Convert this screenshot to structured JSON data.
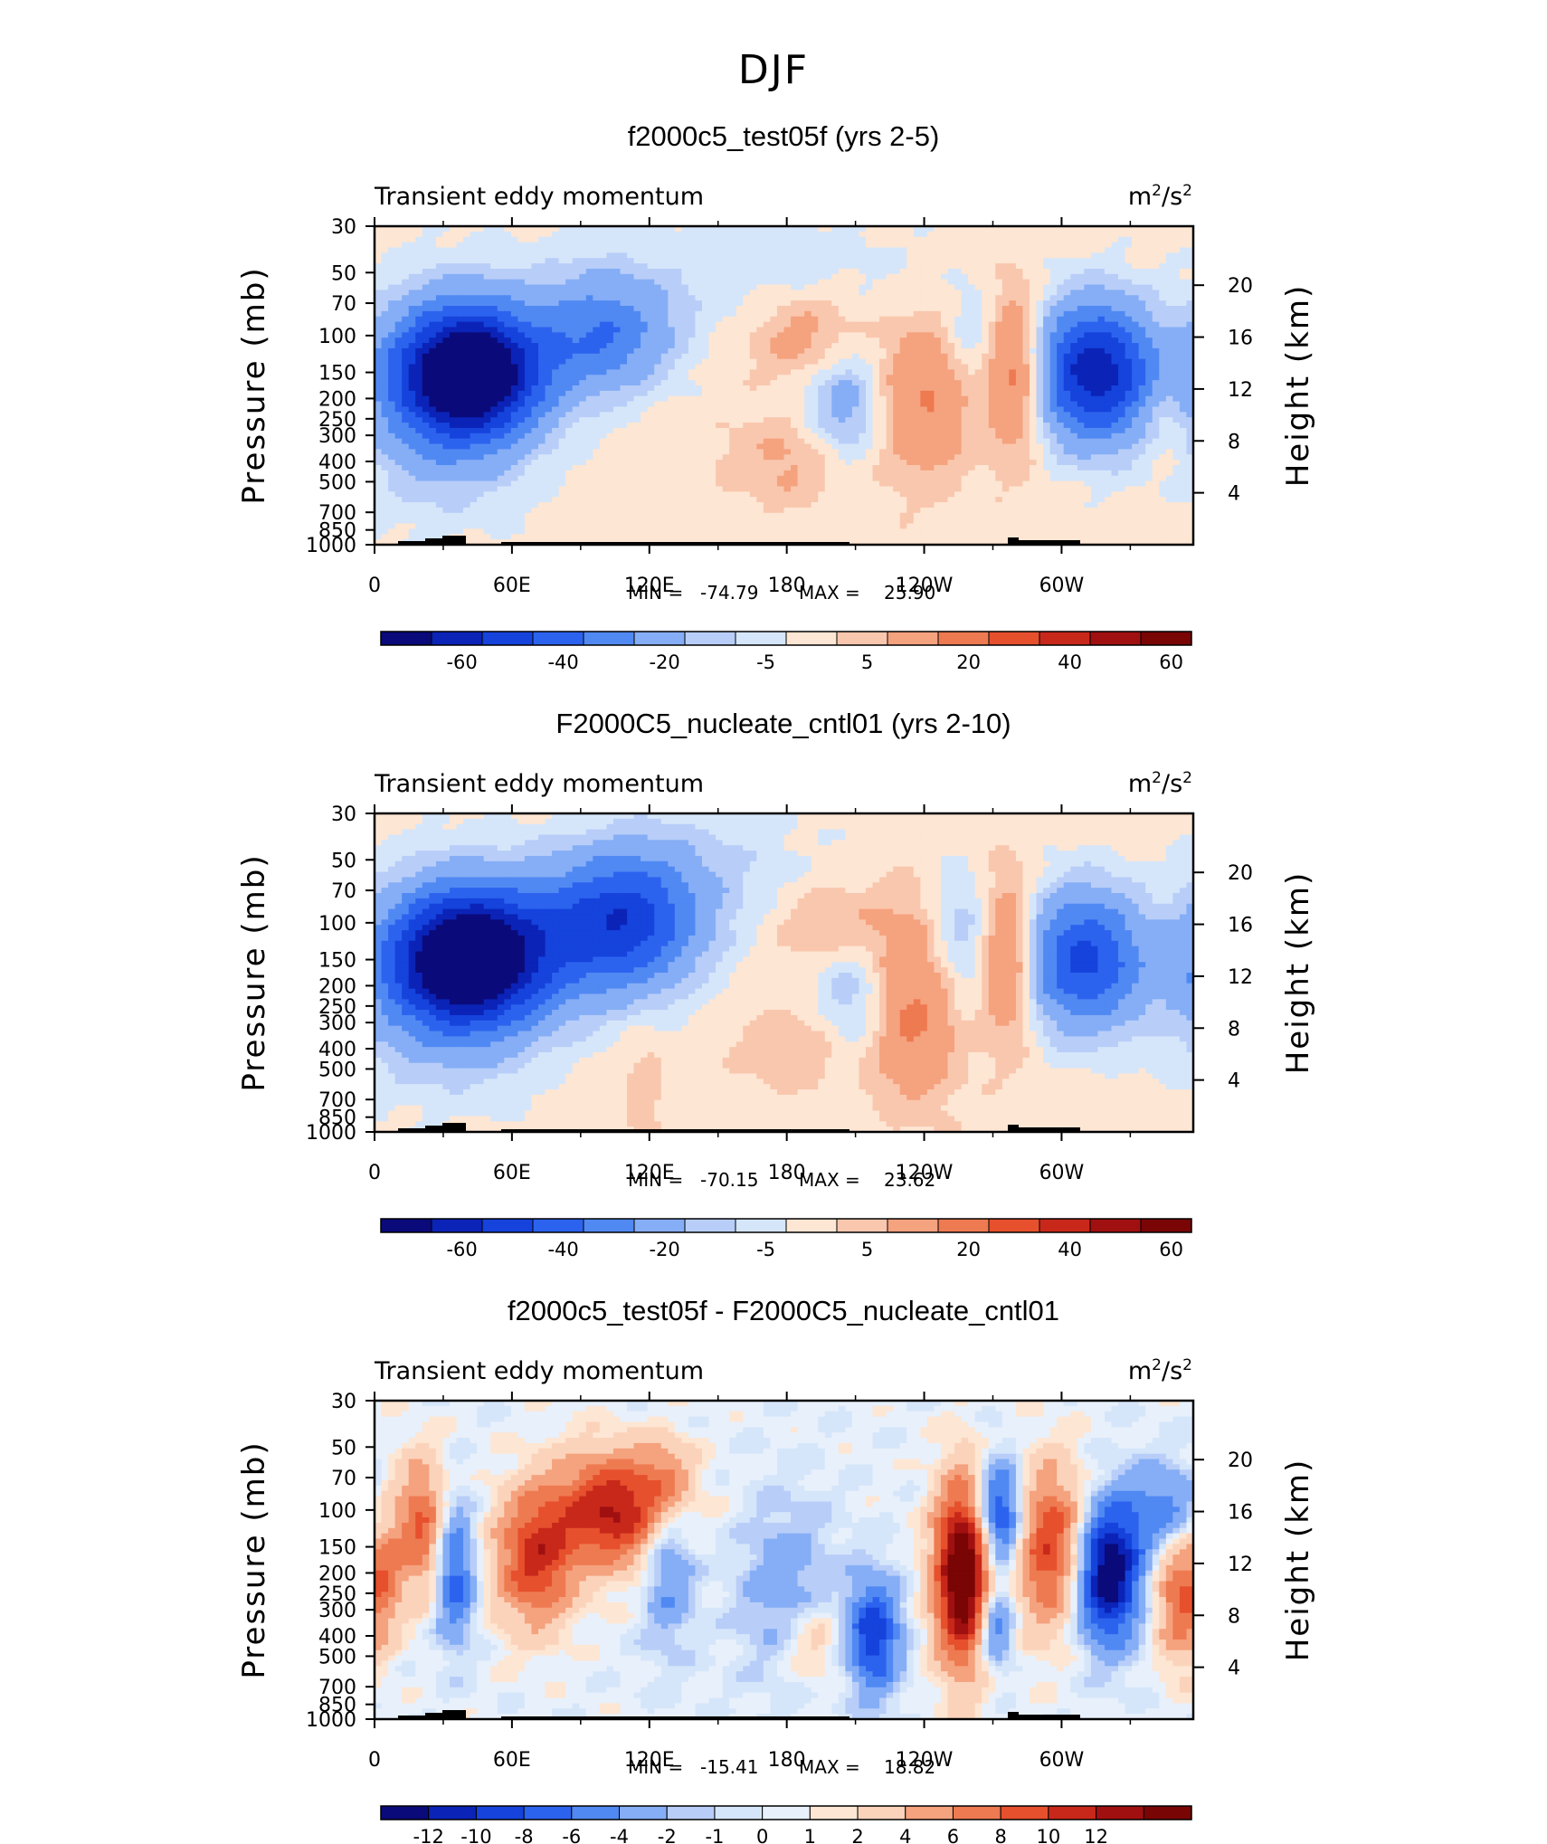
{
  "figure": {
    "title": "DJF"
  },
  "colors": {
    "div14": [
      "#0a0a7a",
      "#0b23b7",
      "#1543dc",
      "#2c63ee",
      "#5189f3",
      "#86aef6",
      "#b8cef8",
      "#d6e6fa",
      "#fde6d3",
      "#f9c7ae",
      "#f5a27e",
      "#ee7a51",
      "#e6502d",
      "#c8281a",
      "#a01010",
      "#7a0505"
    ],
    "div17": [
      "#0a0a7a",
      "#0b23b7",
      "#1543dc",
      "#2c63ee",
      "#5189f3",
      "#86aef6",
      "#b8cef8",
      "#d6e6fa",
      "#e8f0fb",
      "#fde6d3",
      "#fbd3bb",
      "#f5a27e",
      "#ee7a51",
      "#e6502d",
      "#c8281a",
      "#a01010",
      "#7a0505"
    ]
  },
  "chart_data": [
    {
      "type": "heatmap",
      "title": "f2000c5_test05f (yrs 2-5)",
      "left_label": "Transient eddy momentum",
      "units_base": "m",
      "units_mid": "/s",
      "units_sup": "2",
      "ylabel": "Pressure (mb)",
      "y2label": "Height (km)",
      "x_ticks": [
        "0",
        "60E",
        "120E",
        "180",
        "120W",
        "60W"
      ],
      "y_ticks": [
        "30",
        "50",
        "70",
        "100",
        "150",
        "200",
        "250",
        "300",
        "400",
        "500",
        "700",
        "850",
        "1000"
      ],
      "y2_ticks": [
        "20",
        "16",
        "12",
        "8",
        "4"
      ],
      "min_label": "MIN =",
      "min_value": "-74.79",
      "max_label": "MAX =",
      "max_value": "25.90",
      "colorbar_labels": [
        "-60",
        "-40",
        "-20",
        "-5",
        "5",
        "20",
        "40",
        "60"
      ],
      "palette": "div14",
      "blobs": [
        {
          "lon": 42,
          "p": 150,
          "amp": -74.8,
          "slon": 22,
          "slp": 0.28
        },
        {
          "lon": 30,
          "p": 200,
          "amp": -20,
          "slon": 26,
          "slp": 0.45
        },
        {
          "lon": 100,
          "p": 100,
          "amp": -30,
          "slon": 20,
          "slp": 0.25
        },
        {
          "lon": 205,
          "p": 220,
          "amp": -18,
          "slon": 12,
          "slp": 0.3
        },
        {
          "lon": 315,
          "p": 150,
          "amp": -60,
          "slon": 18,
          "slp": 0.3
        },
        {
          "lon": 260,
          "p": 100,
          "amp": -8,
          "slon": 8,
          "slp": 0.2
        },
        {
          "lon": 160,
          "p": 50,
          "amp": -6,
          "slon": 60,
          "slp": 0.3
        },
        {
          "lon": 190,
          "p": 100,
          "amp": 14,
          "slon": 18,
          "slp": 0.2
        },
        {
          "lon": 240,
          "p": 200,
          "amp": 18,
          "slon": 14,
          "slp": 0.35
        },
        {
          "lon": 280,
          "p": 150,
          "amp": 25.9,
          "slon": 8,
          "slp": 0.35
        },
        {
          "lon": 185,
          "p": 400,
          "amp": 10,
          "slon": 22,
          "slp": 0.2
        },
        {
          "lon": 345,
          "p": 250,
          "amp": 8,
          "slon": 8,
          "slp": 0.2
        }
      ]
    },
    {
      "type": "heatmap",
      "title": "F2000C5_nucleate_cntl01 (yrs 2-10)",
      "left_label": "Transient eddy momentum",
      "units_base": "m",
      "units_mid": "/s",
      "units_sup": "2",
      "ylabel": "Pressure (mb)",
      "y2label": "Height (km)",
      "x_ticks": [
        "0",
        "60E",
        "120E",
        "180",
        "120W",
        "60W"
      ],
      "y_ticks": [
        "30",
        "50",
        "70",
        "100",
        "150",
        "200",
        "250",
        "300",
        "400",
        "500",
        "700",
        "850",
        "1000"
      ],
      "y2_ticks": [
        "20",
        "16",
        "12",
        "8",
        "4"
      ],
      "min_label": "MIN =",
      "min_value": "-70.15",
      "max_label": "MAX =",
      "max_value": "23.62",
      "colorbar_labels": [
        "-60",
        "-40",
        "-20",
        "-5",
        "5",
        "20",
        "40",
        "60"
      ],
      "palette": "div14",
      "blobs": [
        {
          "lon": 40,
          "p": 150,
          "amp": -70.2,
          "slon": 24,
          "slp": 0.3
        },
        {
          "lon": 30,
          "p": 200,
          "amp": -15,
          "slon": 30,
          "slp": 0.45
        },
        {
          "lon": 110,
          "p": 100,
          "amp": -40,
          "slon": 22,
          "slp": 0.3
        },
        {
          "lon": 75,
          "p": 120,
          "amp": -15,
          "slon": 30,
          "slp": 0.3
        },
        {
          "lon": 210,
          "p": 250,
          "amp": -15,
          "slon": 12,
          "slp": 0.3
        },
        {
          "lon": 310,
          "p": 150,
          "amp": -45,
          "slon": 18,
          "slp": 0.3
        },
        {
          "lon": 255,
          "p": 120,
          "amp": -12,
          "slon": 10,
          "slp": 0.3
        },
        {
          "lon": 140,
          "p": 60,
          "amp": -8,
          "slon": 40,
          "slp": 0.3
        },
        {
          "lon": 235,
          "p": 250,
          "amp": 20,
          "slon": 14,
          "slp": 0.4
        },
        {
          "lon": 200,
          "p": 100,
          "amp": 10,
          "slon": 20,
          "slp": 0.2
        },
        {
          "lon": 277,
          "p": 150,
          "amp": 23.6,
          "slon": 8,
          "slp": 0.35
        },
        {
          "lon": 195,
          "p": 400,
          "amp": 8,
          "slon": 25,
          "slp": 0.2
        },
        {
          "lon": 118,
          "p": 600,
          "amp": 6,
          "slon": 6,
          "slp": 0.3
        }
      ]
    },
    {
      "type": "heatmap",
      "title": "f2000c5_test05f - F2000C5_nucleate_cntl01",
      "left_label": "Transient eddy momentum",
      "units_base": "m",
      "units_mid": "/s",
      "units_sup": "2",
      "ylabel": "Pressure (mb)",
      "y2label": "Height (km)",
      "x_ticks": [
        "0",
        "60E",
        "120E",
        "180",
        "120W",
        "60W"
      ],
      "y_ticks": [
        "30",
        "50",
        "70",
        "100",
        "150",
        "200",
        "250",
        "300",
        "400",
        "500",
        "700",
        "850",
        "1000"
      ],
      "y2_ticks": [
        "20",
        "16",
        "12",
        "8",
        "4"
      ],
      "min_label": "MIN =",
      "min_value": "-15.41",
      "max_label": "MAX =",
      "max_value": "18.82",
      "colorbar_labels": [
        "-12",
        "-10",
        "-8",
        "-6",
        "-4",
        "-2",
        "-1",
        "0",
        "1",
        "2",
        "4",
        "6",
        "8",
        "10",
        "12"
      ],
      "palette": "div17",
      "blobs": [
        {
          "lon": 320,
          "p": 200,
          "amp": -15.4,
          "slon": 10,
          "slp": 0.3
        },
        {
          "lon": 272,
          "p": 110,
          "amp": -12,
          "slon": 8,
          "slp": 0.25
        },
        {
          "lon": 270,
          "p": 350,
          "amp": -9,
          "slon": 6,
          "slp": 0.2
        },
        {
          "lon": 218,
          "p": 400,
          "amp": -10,
          "slon": 8,
          "slp": 0.25
        },
        {
          "lon": 35,
          "p": 200,
          "amp": -8,
          "slon": 6,
          "slp": 0.3
        },
        {
          "lon": 128,
          "p": 150,
          "amp": -6,
          "slon": 8,
          "slp": 0.4
        },
        {
          "lon": 345,
          "p": 100,
          "amp": -6,
          "slon": 12,
          "slp": 0.2
        },
        {
          "lon": 180,
          "p": 250,
          "amp": -4,
          "slon": 15,
          "slp": 0.4
        },
        {
          "lon": 105,
          "p": 100,
          "amp": 12,
          "slon": 18,
          "slp": 0.25
        },
        {
          "lon": 128,
          "p": 70,
          "amp": 6,
          "slon": 8,
          "slp": 0.2
        },
        {
          "lon": 70,
          "p": 170,
          "amp": 10,
          "slon": 12,
          "slp": 0.3
        },
        {
          "lon": 20,
          "p": 120,
          "amp": 8,
          "slon": 8,
          "slp": 0.3
        },
        {
          "lon": 258,
          "p": 200,
          "amp": 18.8,
          "slon": 9,
          "slp": 0.4
        },
        {
          "lon": 295,
          "p": 150,
          "amp": 10,
          "slon": 12,
          "slp": 0.35
        },
        {
          "lon": 352,
          "p": 250,
          "amp": 8,
          "slon": 8,
          "slp": 0.3
        },
        {
          "lon": 190,
          "p": 420,
          "amp": 4,
          "slon": 10,
          "slp": 0.2
        },
        {
          "lon": 5,
          "p": 200,
          "amp": 5,
          "slon": 5,
          "slp": 0.3
        }
      ]
    }
  ]
}
